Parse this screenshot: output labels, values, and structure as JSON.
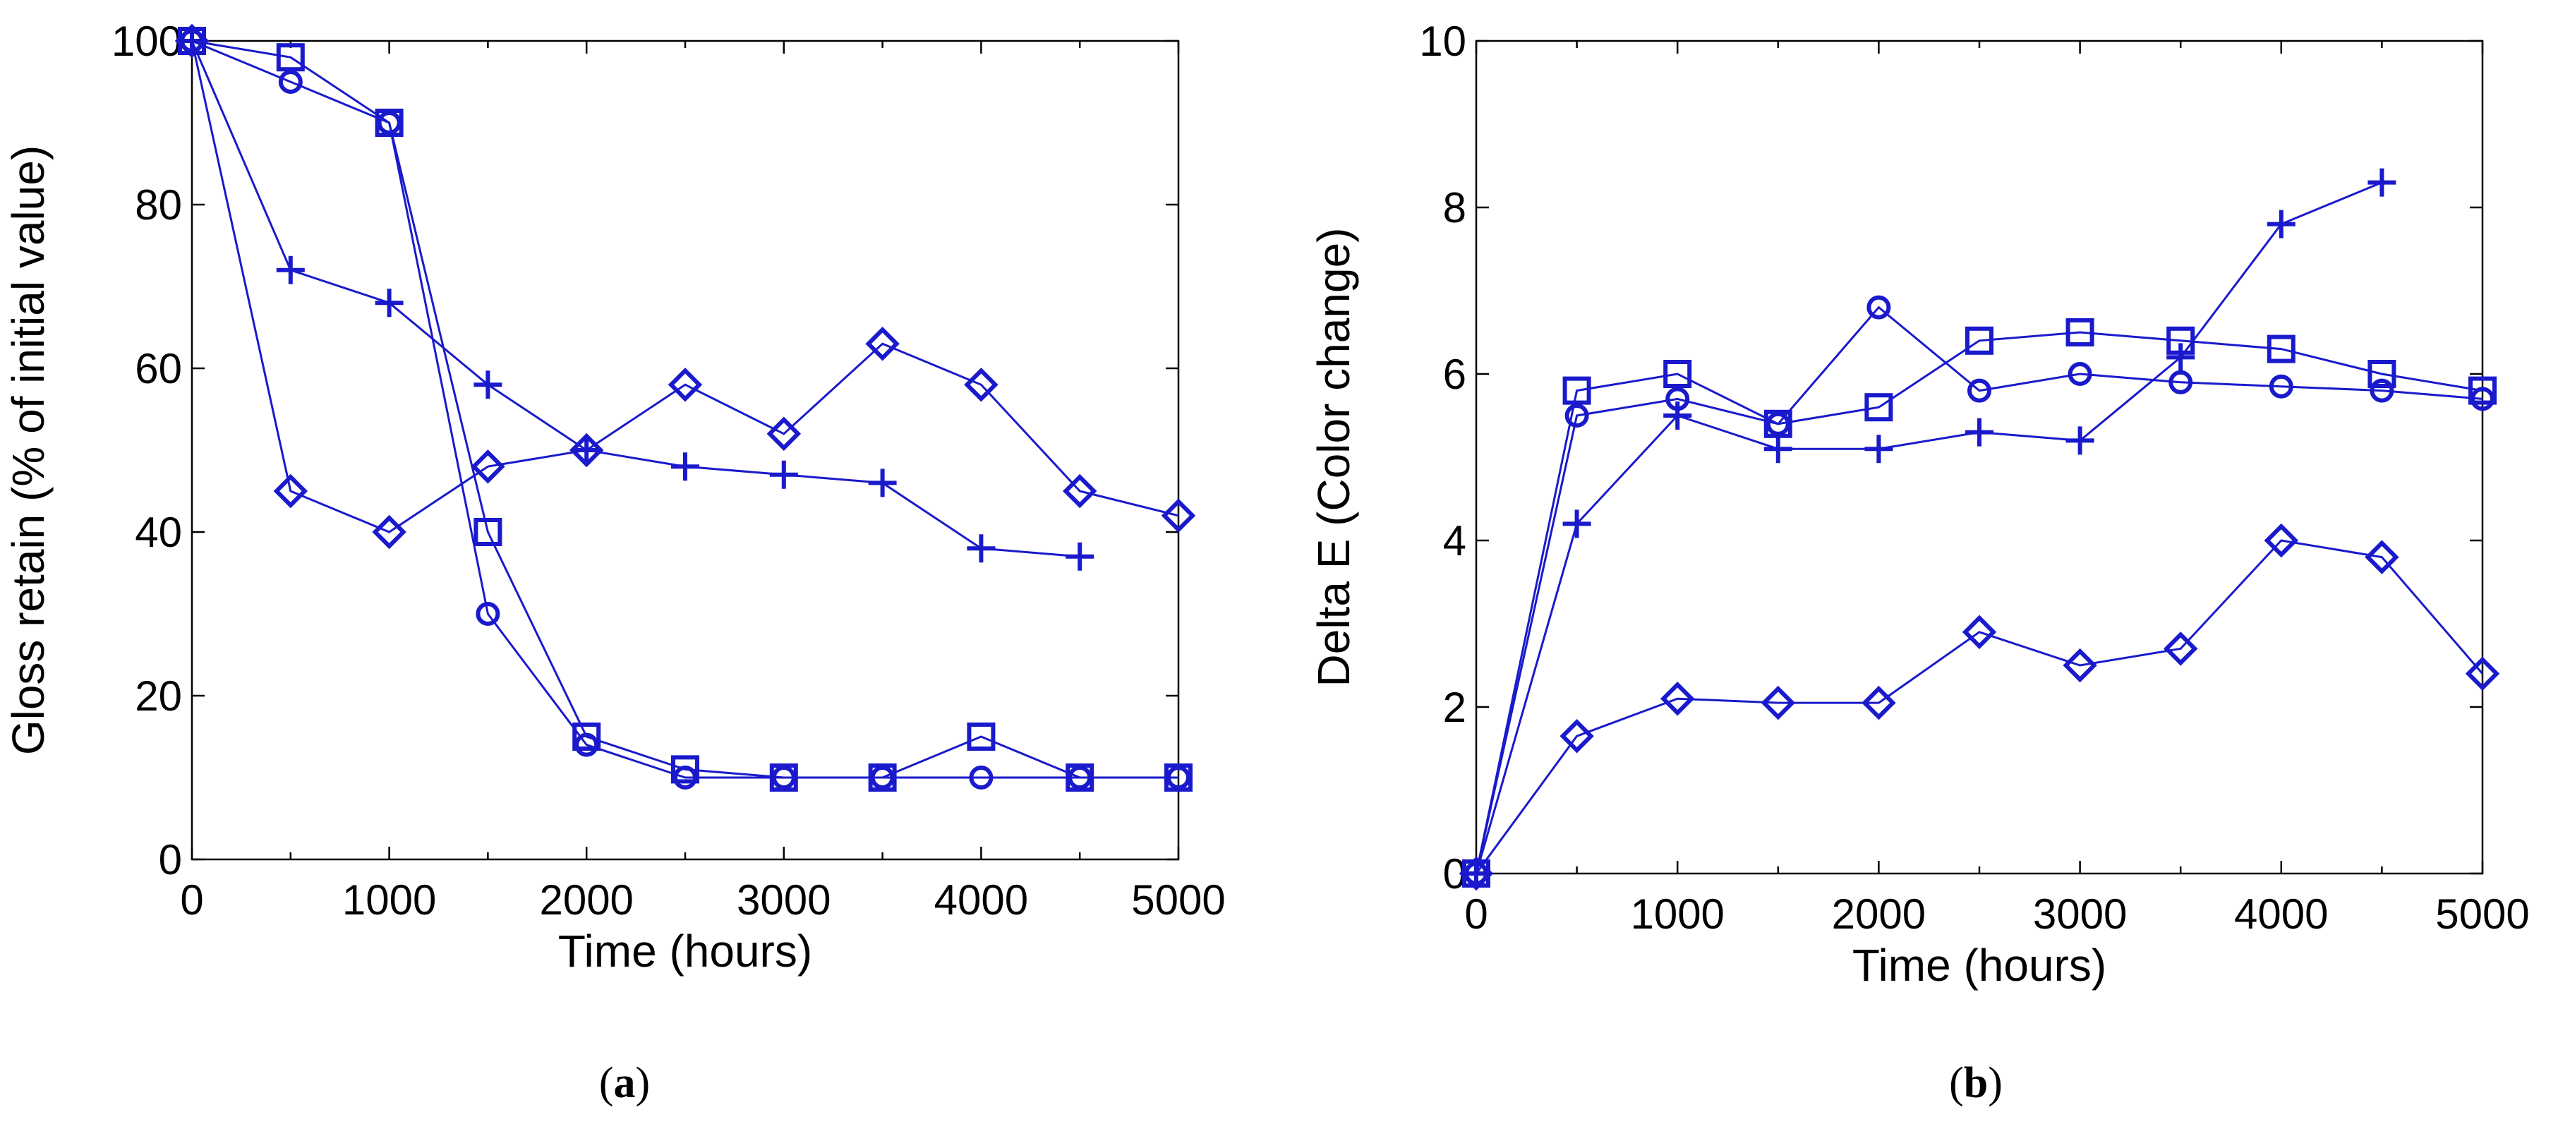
{
  "colors": {
    "series": "#1a1acc",
    "axis": "#000000"
  },
  "chart_data": [
    {
      "type": "line",
      "panel": "a",
      "caption_open": "(",
      "caption_letter": "a",
      "caption_close": ")",
      "xlabel": "Time (hours)",
      "ylabel": "Gloss retain (% of initial value)",
      "xlim": [
        0,
        5000
      ],
      "ylim": [
        0,
        100
      ],
      "xticks": [
        0,
        1000,
        2000,
        3000,
        4000,
        5000
      ],
      "yticks": [
        0,
        20,
        40,
        60,
        80,
        100
      ],
      "minor_xticks": [
        500,
        1500,
        2500,
        3500,
        4500
      ],
      "grid": false,
      "series": [
        {
          "name": "circle",
          "marker": "circle",
          "x": [
            0,
            500,
            1000,
            1500,
            2000,
            2500,
            3000,
            3500,
            4000,
            4500,
            5000
          ],
          "y": [
            100,
            95,
            90,
            30,
            14,
            10,
            10,
            10,
            10,
            10,
            10
          ]
        },
        {
          "name": "square",
          "marker": "square",
          "x": [
            0,
            500,
            1000,
            1500,
            2000,
            2500,
            3000,
            3500,
            4000,
            4500,
            5000
          ],
          "y": [
            100,
            98,
            90,
            40,
            15,
            11,
            10,
            10,
            15,
            10,
            10
          ]
        },
        {
          "name": "plus",
          "marker": "plus",
          "x": [
            0,
            500,
            1000,
            1500,
            2000,
            2500,
            3000,
            3500,
            4000,
            4500
          ],
          "y": [
            100,
            72,
            68,
            58,
            50,
            48,
            47,
            46,
            38,
            37
          ]
        },
        {
          "name": "diamond",
          "marker": "diamond",
          "x": [
            0,
            500,
            1000,
            1500,
            2000,
            2500,
            3000,
            3500,
            4000,
            4500,
            5000
          ],
          "y": [
            100,
            45,
            40,
            48,
            50,
            58,
            52,
            63,
            58,
            45,
            42
          ]
        }
      ]
    },
    {
      "type": "line",
      "panel": "b",
      "caption_open": "(",
      "caption_letter": "b",
      "caption_close": ")",
      "xlabel": "Time (hours)",
      "ylabel": "Delta E  (Color change)",
      "xlim": [
        0,
        5000
      ],
      "ylim": [
        0,
        10
      ],
      "xticks": [
        0,
        1000,
        2000,
        3000,
        4000,
        5000
      ],
      "yticks": [
        0,
        2,
        4,
        6,
        8,
        10
      ],
      "minor_xticks": [
        500,
        1500,
        2500,
        3500,
        4500
      ],
      "grid": false,
      "series": [
        {
          "name": "circle",
          "marker": "circle",
          "x": [
            0,
            500,
            1000,
            1500,
            2000,
            2500,
            3000,
            3500,
            4000,
            4500,
            5000
          ],
          "y": [
            0,
            5.5,
            5.7,
            5.4,
            6.8,
            5.8,
            6.0,
            5.9,
            5.85,
            5.8,
            5.7
          ]
        },
        {
          "name": "square",
          "marker": "square",
          "x": [
            0,
            500,
            1000,
            1500,
            2000,
            2500,
            3000,
            3500,
            4000,
            4500,
            5000
          ],
          "y": [
            0,
            5.8,
            6.0,
            5.4,
            5.6,
            6.4,
            6.5,
            6.4,
            6.3,
            6.0,
            5.8
          ]
        },
        {
          "name": "plus",
          "marker": "plus",
          "x": [
            0,
            500,
            1000,
            1500,
            2000,
            2500,
            3000,
            3500,
            4000,
            4500
          ],
          "y": [
            0,
            4.2,
            5.5,
            5.1,
            5.1,
            5.3,
            5.2,
            6.2,
            7.8,
            8.3
          ]
        },
        {
          "name": "diamond",
          "marker": "diamond",
          "x": [
            0,
            500,
            1000,
            1500,
            2000,
            2500,
            3000,
            3500,
            4000,
            4500,
            5000
          ],
          "y": [
            0,
            1.65,
            2.1,
            2.05,
            2.05,
            2.9,
            2.5,
            2.7,
            4.0,
            3.8,
            2.4
          ]
        }
      ]
    }
  ]
}
